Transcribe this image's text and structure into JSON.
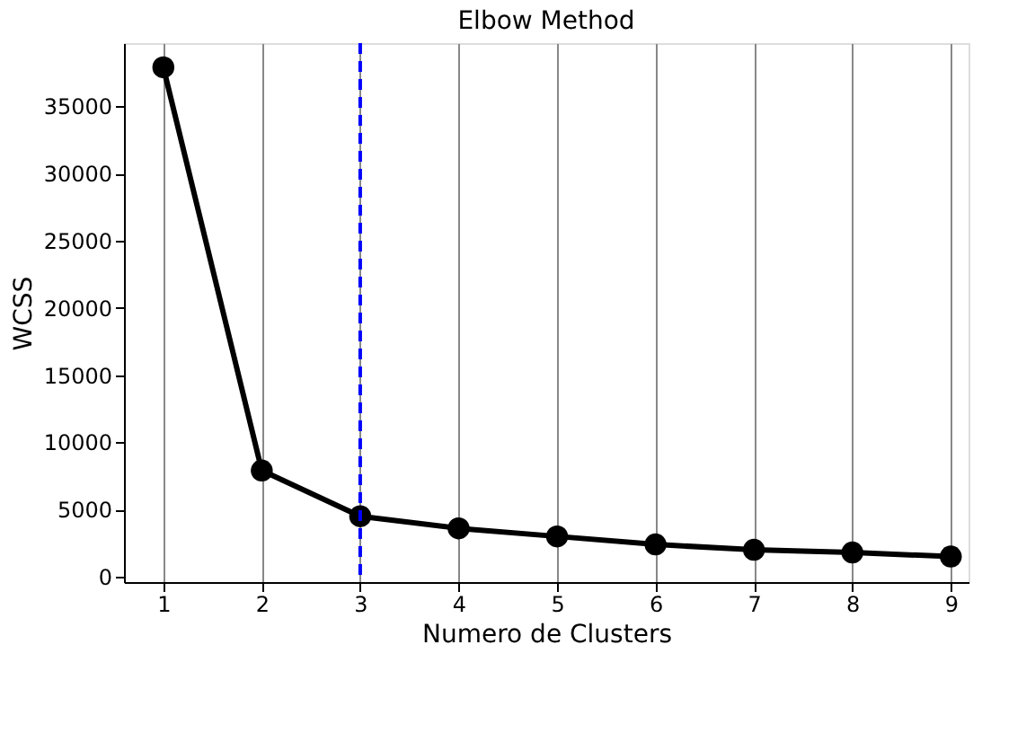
{
  "chart_data": {
    "type": "line",
    "title": "Elbow Method",
    "xlabel": "Numero de Clusters",
    "ylabel": "WCSS",
    "x": [
      1,
      2,
      3,
      4,
      5,
      6,
      7,
      8,
      9
    ],
    "series": [
      {
        "color": "#000000",
        "values": [
          37900,
          7900,
          4500,
          3600,
          3000,
          2400,
          2000,
          1800,
          1500
        ]
      }
    ],
    "xlim": [
      0.6,
      9.18
    ],
    "xticks": [
      1,
      2,
      3,
      4,
      5,
      6,
      7,
      8,
      9
    ],
    "ylim": [
      -400,
      39700
    ],
    "yticks": [
      0,
      5000,
      10000,
      15000,
      20000,
      25000,
      30000,
      35000
    ],
    "grid": "x",
    "marker": "circle",
    "line_style": "solid",
    "ref_lines": [
      {
        "axis": "x",
        "value": 3,
        "color": "#0000ff",
        "line_style": "dashed"
      }
    ]
  }
}
